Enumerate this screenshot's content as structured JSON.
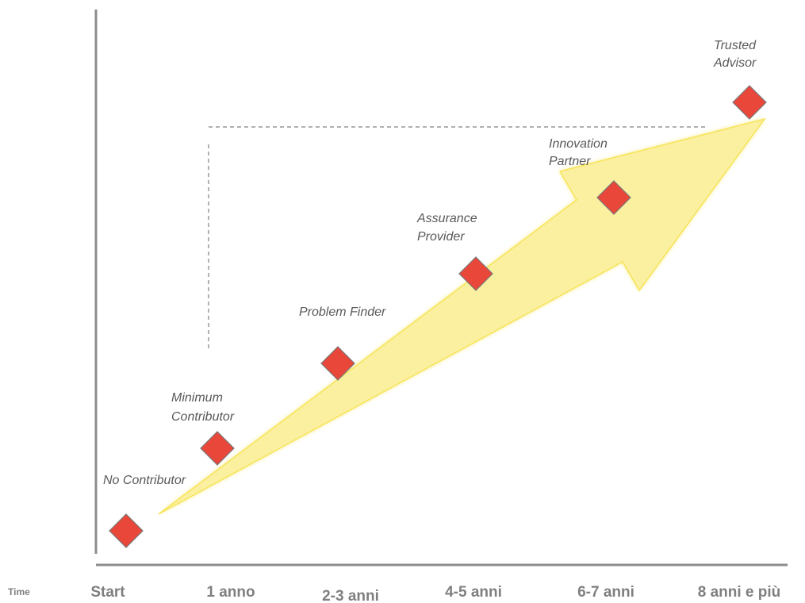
{
  "time_caption": "Time",
  "time_labels": [
    "Start",
    "1 anno",
    "2-3 anni",
    "4-5 anni",
    "6-7 anni",
    "8 anni e più"
  ],
  "stages": [
    {
      "lines": [
        "No Contributor"
      ]
    },
    {
      "lines": [
        "Minimum",
        "Contributor"
      ]
    },
    {
      "lines": [
        "Problem Finder"
      ]
    },
    {
      "lines": [
        "Assurance",
        "Provider"
      ]
    },
    {
      "lines": [
        "Innovation",
        "Partner"
      ]
    },
    {
      "lines": [
        "Trusted",
        "Advisor"
      ]
    }
  ],
  "colors": {
    "marker_fill": "#e8473a",
    "arrow_fill": "#fbf0a0",
    "arrow_edge": "#f7e45a",
    "axis": "#8c8c8c",
    "text": "#595959"
  }
}
